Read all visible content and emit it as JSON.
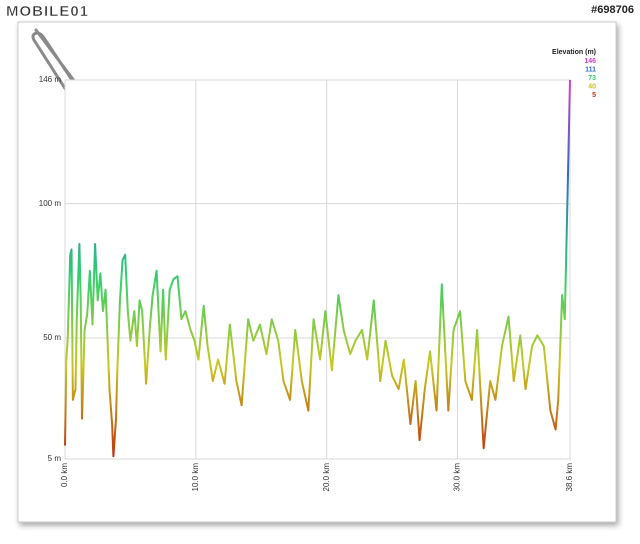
{
  "watermark": {
    "logo": "MOBILE01",
    "id": "#698706"
  },
  "chart_data": {
    "type": "line",
    "xlim": [
      0,
      38.6
    ],
    "ylim": [
      5,
      146
    ],
    "xticks": [
      {
        "value": 0,
        "label": "0.0 km"
      },
      {
        "value": 10,
        "label": "10.0 km"
      },
      {
        "value": 20,
        "label": "20.0 km"
      },
      {
        "value": 30,
        "label": "30.0 km"
      },
      {
        "value": 38.6,
        "label": "38.6 km"
      }
    ],
    "yticks": [
      {
        "value": 5,
        "label": "5 m"
      },
      {
        "value": 50,
        "label": "50 m"
      },
      {
        "value": 100,
        "label": "100 m"
      },
      {
        "value": 146,
        "label": "146 m"
      }
    ],
    "grid": true,
    "legend": {
      "title": "Elevation (m)",
      "items": [
        {
          "value": 146,
          "color": "#d040d0"
        },
        {
          "value": 111,
          "color": "#2f6cc0"
        },
        {
          "value": 73,
          "color": "#30d070"
        },
        {
          "value": 40,
          "color": "#c8c820"
        },
        {
          "value": 5,
          "color": "#c03010"
        }
      ]
    },
    "x": [
      0,
      0.1,
      0.2,
      0.4,
      0.5,
      0.6,
      0.8,
      0.9,
      1.1,
      1.2,
      1.3,
      1.5,
      1.7,
      1.9,
      2.1,
      2.3,
      2.5,
      2.7,
      2.9,
      3.1,
      3.4,
      3.6,
      3.7,
      3.9,
      4.0,
      4.2,
      4.4,
      4.6,
      4.8,
      5.0,
      5.3,
      5.5,
      5.7,
      5.9,
      6.2,
      6.5,
      6.7,
      7.0,
      7.3,
      7.5,
      7.7,
      8.0,
      8.3,
      8.6,
      8.9,
      9.2,
      9.6,
      9.9,
      10.2,
      10.6,
      10.9,
      11.3,
      11.7,
      12.2,
      12.6,
      13.1,
      13.5,
      14.0,
      14.4,
      14.9,
      15.4,
      15.8,
      16.3,
      16.7,
      17.2,
      17.6,
      18.1,
      18.6,
      19.0,
      19.5,
      19.9,
      20.4,
      20.9,
      21.3,
      21.8,
      22.2,
      22.7,
      23.1,
      23.6,
      24.1,
      24.5,
      25.0,
      25.5,
      25.9,
      26.4,
      26.8,
      27.1,
      27.5,
      27.9,
      28.4,
      28.8,
      29.3,
      29.7,
      30.2,
      30.6,
      31.1,
      31.5,
      32.0,
      32.5,
      32.9,
      33.4,
      33.9,
      34.3,
      34.8,
      35.2,
      35.7,
      36.1,
      36.6,
      37.1,
      37.5,
      37.7,
      38.0,
      38.2,
      38.4,
      38.6
    ],
    "values": [
      10,
      42,
      49,
      81,
      83,
      27,
      31,
      57,
      85,
      64,
      20,
      53,
      59,
      75,
      55,
      85,
      64,
      74,
      60,
      68,
      31,
      18,
      6,
      20,
      38,
      64,
      79,
      81,
      60,
      49,
      60,
      47,
      64,
      60,
      33,
      55,
      66,
      75,
      45,
      68,
      42,
      68,
      72,
      73,
      57,
      60,
      53,
      49,
      42,
      62,
      47,
      34,
      42,
      33,
      55,
      34,
      25,
      57,
      49,
      55,
      44,
      57,
      49,
      34,
      27,
      53,
      34,
      23,
      57,
      42,
      60,
      38,
      66,
      53,
      44,
      49,
      53,
      42,
      64,
      34,
      49,
      36,
      31,
      42,
      18,
      34,
      12,
      31,
      45,
      23,
      70,
      23,
      53,
      60,
      34,
      27,
      53,
      9,
      34,
      27,
      47,
      58,
      34,
      51,
      31,
      47,
      51,
      47,
      23,
      16,
      27,
      66,
      57,
      100,
      146
    ]
  }
}
